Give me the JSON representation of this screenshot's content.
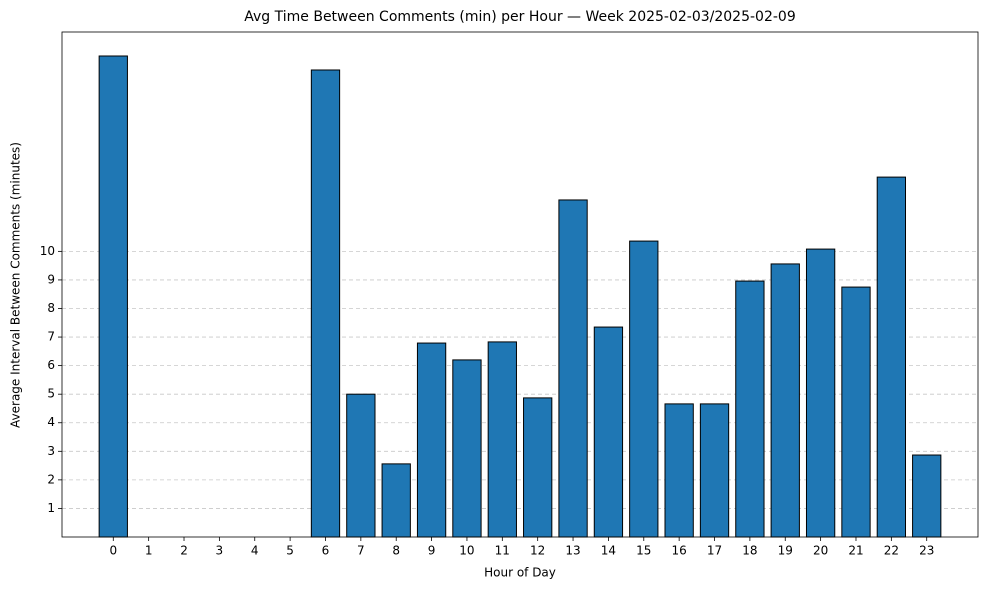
{
  "chart_data": {
    "type": "bar",
    "title": "Avg Time Between Comments (min) per Hour — Week 2025-02-03/2025-02-09",
    "x_label": "Hour of Day",
    "y_label": "Average Interval Between Comments (minutes)",
    "categories": [
      "0",
      "1",
      "2",
      "3",
      "4",
      "5",
      "6",
      "7",
      "8",
      "9",
      "10",
      "11",
      "12",
      "13",
      "14",
      "15",
      "16",
      "17",
      "18",
      "19",
      "20",
      "21",
      "22",
      "23"
    ],
    "values": [
      16.84,
      0,
      0,
      0,
      0,
      0,
      16.35,
      5.0,
      2.56,
      6.79,
      6.2,
      6.83,
      4.87,
      11.8,
      7.35,
      10.36,
      4.66,
      4.66,
      8.96,
      9.56,
      10.08,
      8.75,
      12.6,
      2.87
    ],
    "color": "#1f77b4",
    "ylim": [
      0,
      17.68
    ],
    "yticks": [
      1,
      2,
      3,
      4,
      5,
      6,
      7,
      8,
      9,
      10
    ],
    "grid": true
  }
}
